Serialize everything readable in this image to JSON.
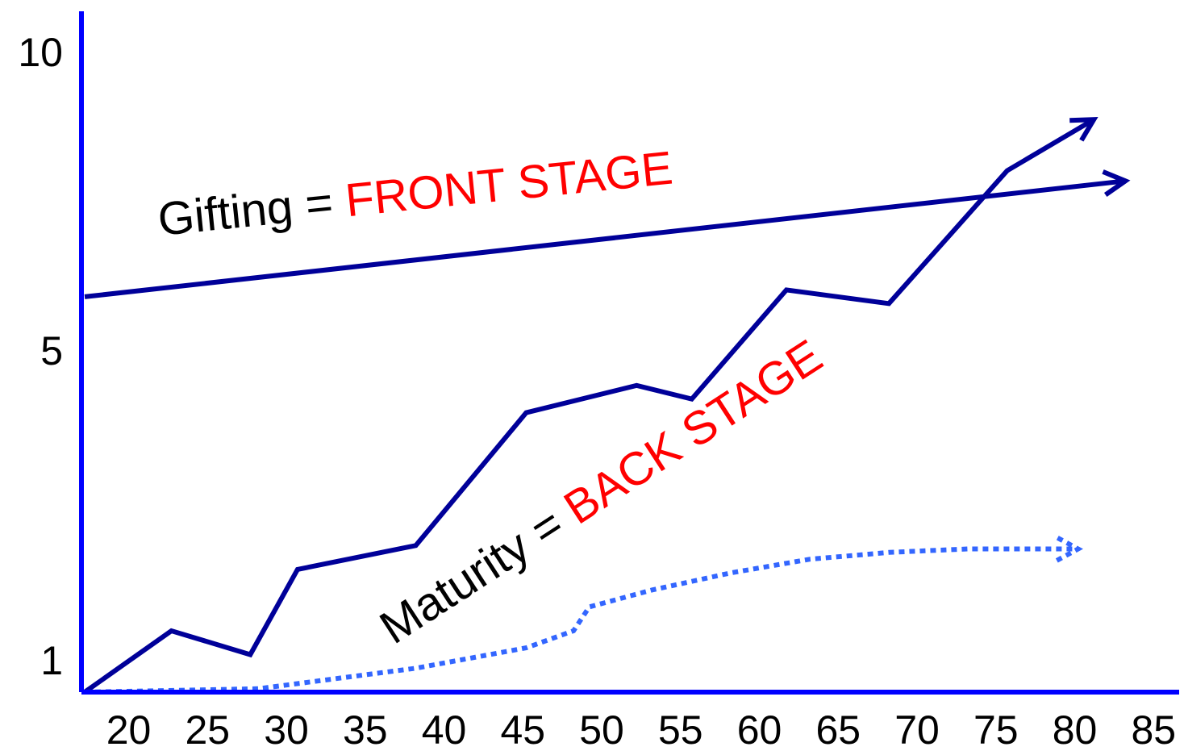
{
  "chart_data": {
    "type": "line",
    "title": "",
    "xlabel": "",
    "ylabel": "",
    "x_ticks": [
      "20",
      "25",
      "30",
      "35",
      "40",
      "45",
      "50",
      "55",
      "60",
      "65",
      "70",
      "75",
      "80",
      "85"
    ],
    "y_ticks": [
      "1",
      "5",
      "10"
    ],
    "xlim": [
      19,
      86
    ],
    "ylim": [
      1,
      10.5
    ],
    "grid": false,
    "legend": "none",
    "colors": {
      "axis": "#0000ff",
      "gifting": "#000099",
      "growth": "#000099",
      "maturity": "#3366ff",
      "highlight": "#ff0000",
      "text": "#000000"
    },
    "series": [
      {
        "key": "gifting",
        "style": "solid-arrow",
        "points": [
          [
            19,
            6.8
          ],
          [
            85,
            8.5
          ]
        ]
      },
      {
        "key": "growth",
        "style": "solid-arrow",
        "points": [
          [
            19,
            1.0
          ],
          [
            24.5,
            1.9
          ],
          [
            29.5,
            1.55
          ],
          [
            32.5,
            2.8
          ],
          [
            40,
            3.15
          ],
          [
            47,
            5.1
          ],
          [
            54,
            5.5
          ],
          [
            57.5,
            5.3
          ],
          [
            63.5,
            6.9
          ],
          [
            70,
            6.7
          ],
          [
            77.5,
            8.65
          ],
          [
            83,
            9.4
          ]
        ]
      },
      {
        "key": "maturity",
        "style": "dotted-arrow",
        "points": [
          [
            19,
            1.0
          ],
          [
            30,
            1.05
          ],
          [
            40,
            1.35
          ],
          [
            47,
            1.65
          ],
          [
            50,
            1.9
          ],
          [
            51,
            2.25
          ],
          [
            55,
            2.5
          ],
          [
            60,
            2.75
          ],
          [
            65,
            2.95
          ],
          [
            70,
            3.05
          ],
          [
            75,
            3.1
          ],
          [
            82,
            3.1
          ]
        ]
      }
    ],
    "annotations": [
      {
        "key": "gifting_label",
        "parts": [
          "Gifting = ",
          "FRONT STAGE"
        ],
        "anchor_x": 28.5,
        "anchor_y": 6.65
      },
      {
        "key": "maturity_label",
        "parts": [
          "Maturity = ",
          "BACK STAGE"
        ],
        "anchor_x": 40.5,
        "anchor_y": 1.65
      }
    ]
  }
}
